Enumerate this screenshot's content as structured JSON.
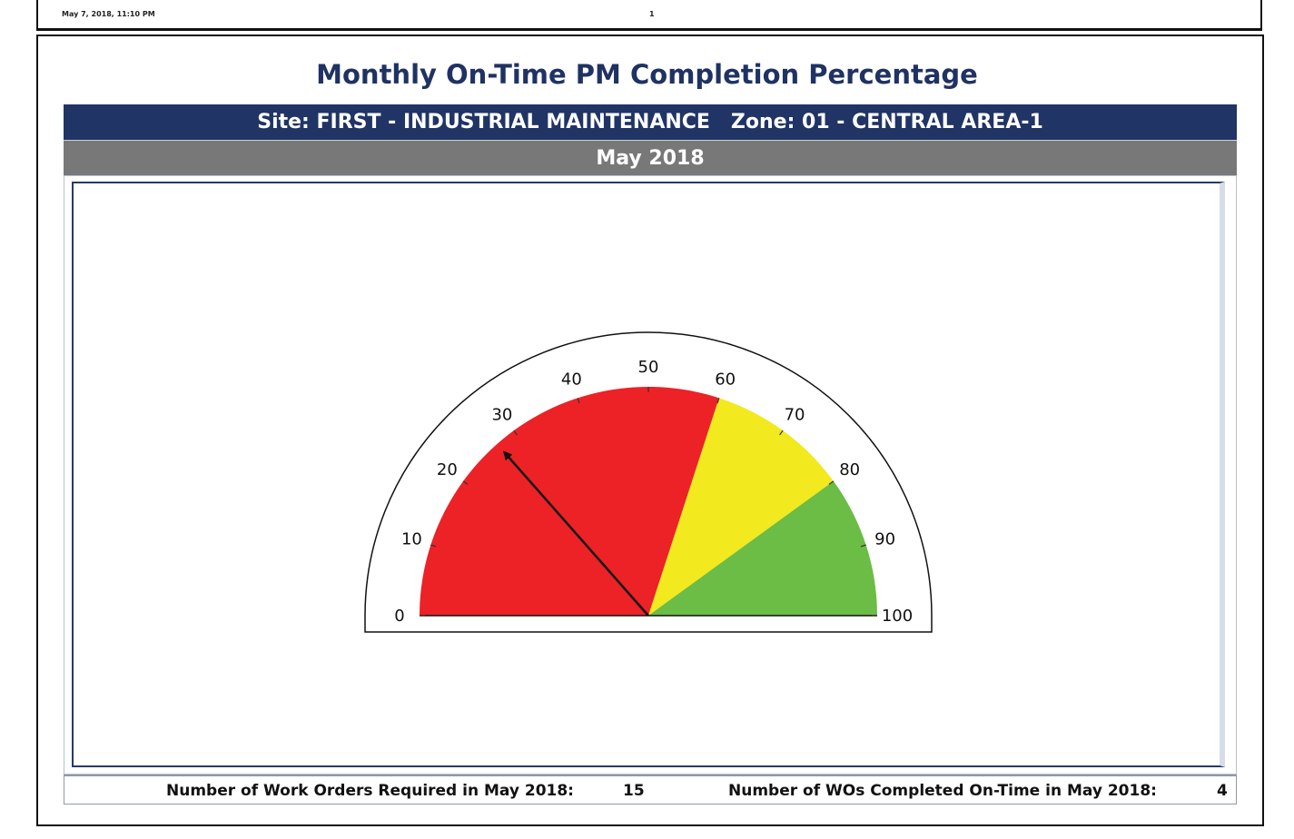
{
  "header": {
    "date_time": "May 7, 2018, 11:10 PM",
    "page_number": "1"
  },
  "report": {
    "title": "Monthly On-Time PM Completion Percentage",
    "site_zone": "Site: FIRST - INDUSTRIAL MAINTENANCE   Zone: 01 - CENTRAL AREA-1",
    "period": "May 2018"
  },
  "gauge": {
    "value": 27,
    "min": 0,
    "max": 100,
    "tick_labels": [
      "0",
      "10",
      "20",
      "30",
      "40",
      "50",
      "60",
      "70",
      "80",
      "90",
      "100"
    ],
    "bands": [
      {
        "from": 0,
        "to": 60,
        "color": "#ec2227"
      },
      {
        "from": 60,
        "to": 80,
        "color": "#f2e91e"
      },
      {
        "from": 80,
        "to": 100,
        "color": "#6bbd45"
      }
    ],
    "needle_color": "#111111"
  },
  "footer": {
    "required_label": "Number of Work Orders Required in May 2018:",
    "required_value": "15",
    "completed_label": "Number of WOs Completed On-Time in May 2018:",
    "completed_value": "4"
  }
}
